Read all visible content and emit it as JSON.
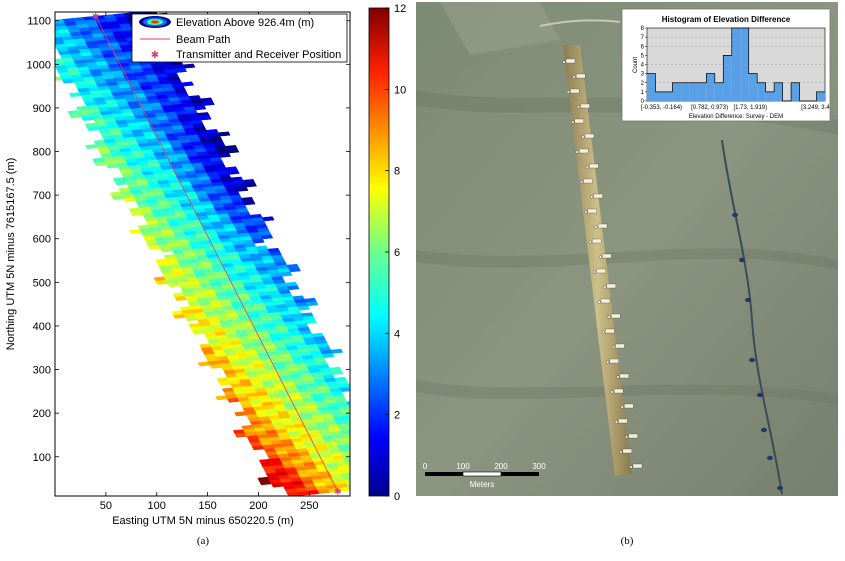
{
  "chart_data": [
    {
      "type": "heatmap",
      "xlabel": "Easting UTM 5N minus 650220.5 (m)",
      "ylabel": "Northing UTM 5N minus 7615167.5 (m)",
      "xlim": [
        0,
        290
      ],
      "ylim": [
        10,
        1120
      ],
      "x_ticks": [
        50,
        100,
        150,
        200,
        250
      ],
      "y_ticks": [
        100,
        200,
        300,
        400,
        500,
        600,
        700,
        800,
        900,
        1000,
        1100
      ],
      "colorbar": {
        "ticks": [
          0,
          2,
          4,
          6,
          8,
          10,
          12
        ],
        "range": [
          0,
          12
        ],
        "colormap": "jet"
      },
      "legend": {
        "placement": "top-right",
        "entries": [
          "Elevation Above 926.4m (m)",
          "Beam Path",
          "Transmitter and Receiver Position"
        ]
      },
      "beam_path": {
        "color": "#e0405a",
        "start": [
          40,
          1110
        ],
        "end": [
          278,
          20
        ]
      },
      "markers": [
        [
          40,
          1110
        ],
        [
          278,
          20
        ]
      ],
      "caption": "(a)"
    },
    {
      "type": "bar",
      "title": "Histogram of Elevation Difference",
      "xlabel": "Elevation Difference: Survey - DEM",
      "ylabel": "Count",
      "ylim": [
        0,
        8
      ],
      "y_ticks": [
        0,
        1,
        2,
        3,
        4,
        5,
        6,
        7,
        8
      ],
      "bin_labels": [
        "[-0.353, -0.164)",
        "[0.782, 0.973)",
        "[1.73, 1.919)",
        "[3.249, 3.4"
      ],
      "values": [
        3,
        1,
        1,
        2,
        2,
        2,
        2,
        3,
        2,
        5,
        8,
        8,
        3,
        2,
        1,
        2,
        0,
        2,
        0,
        0,
        1
      ],
      "bar_color": "#5aa0e6",
      "caption": "(b)"
    }
  ],
  "map": {
    "scale_ticks": [
      "0",
      "100",
      "200",
      "300"
    ],
    "scale_unit": "Meters"
  }
}
